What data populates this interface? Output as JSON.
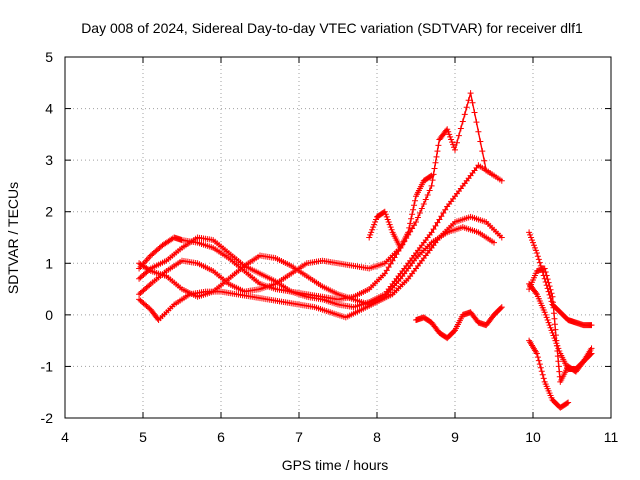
{
  "chart_data": {
    "type": "scatter",
    "title": "Day 008 of 2024, Sidereal Day-to-day VTEC variation (SDTVAR) for receiver dlf1",
    "xlabel": "GPS time / hours",
    "ylabel": "SDTVAR / TECUs",
    "xlim": [
      4,
      11
    ],
    "ylim": [
      -2,
      5
    ],
    "xticks": [
      "4",
      "5",
      "6",
      "7",
      "8",
      "9",
      "10",
      "11"
    ],
    "yticks": [
      "-2",
      "-1",
      "0",
      "1",
      "2",
      "3",
      "4",
      "5"
    ],
    "grid": true,
    "marker": "+",
    "color": "#ff0000",
    "series": [
      {
        "name": "track-1",
        "x": [
          4.95,
          5.1,
          5.25,
          5.4,
          5.5,
          5.7,
          5.9,
          6.1,
          6.3,
          6.5,
          6.7,
          6.9,
          7.1,
          7.3,
          7.5,
          7.7,
          7.9,
          8.1,
          8.3,
          8.4,
          8.5,
          8.6,
          8.7
        ],
        "y": [
          0.9,
          1.15,
          1.35,
          1.5,
          1.45,
          1.4,
          1.3,
          1.1,
          0.85,
          0.6,
          0.5,
          0.45,
          0.4,
          0.35,
          0.3,
          0.35,
          0.5,
          0.8,
          1.3,
          1.6,
          2.3,
          2.6,
          2.7
        ]
      },
      {
        "name": "track-2",
        "x": [
          4.95,
          5.1,
          5.3,
          5.5,
          5.7,
          5.9,
          6.1,
          6.3,
          6.5,
          6.7,
          6.9,
          7.1,
          7.3,
          7.5,
          7.7,
          7.9,
          8.1,
          8.3,
          8.5,
          8.7,
          8.9,
          9.1,
          9.3,
          9.5
        ],
        "y": [
          0.7,
          0.9,
          1.05,
          1.3,
          1.5,
          1.45,
          1.2,
          0.95,
          0.8,
          0.65,
          0.45,
          0.35,
          0.3,
          0.2,
          0.15,
          0.25,
          0.4,
          0.8,
          1.2,
          1.6,
          2.1,
          2.5,
          2.9,
          2.7
        ]
      },
      {
        "name": "track-3",
        "x": [
          4.95,
          5.1,
          5.3,
          5.5,
          5.7,
          5.9,
          6.1,
          6.3,
          6.5,
          6.7,
          6.9,
          7.1,
          7.3,
          7.5,
          7.7,
          7.9,
          8.1,
          8.3,
          8.5,
          8.7,
          8.8,
          8.9,
          9.0,
          9.2,
          9.4,
          9.6
        ],
        "y": [
          0.4,
          0.6,
          0.85,
          1.05,
          1.0,
          0.85,
          0.6,
          0.45,
          0.5,
          0.6,
          0.8,
          1.0,
          1.05,
          1.0,
          0.95,
          0.9,
          1.0,
          1.3,
          1.8,
          2.5,
          3.4,
          3.6,
          3.2,
          4.3,
          2.8,
          2.6
        ]
      },
      {
        "name": "track-4",
        "x": [
          4.95,
          5.1,
          5.2,
          5.4,
          5.6,
          5.8,
          6.0,
          6.2,
          6.4,
          6.6,
          6.8,
          7.0,
          7.2,
          7.4,
          7.6,
          7.8,
          8.0,
          8.2,
          8.4,
          8.6,
          8.8,
          9.0,
          9.2,
          9.4,
          9.6
        ],
        "y": [
          0.3,
          0.1,
          -0.1,
          0.2,
          0.4,
          0.45,
          0.45,
          0.4,
          0.35,
          0.3,
          0.25,
          0.2,
          0.15,
          0.05,
          -0.05,
          0.1,
          0.25,
          0.4,
          0.7,
          1.1,
          1.5,
          1.8,
          1.9,
          1.8,
          1.5
        ]
      },
      {
        "name": "track-5",
        "x": [
          4.95,
          5.1,
          5.3,
          5.5,
          5.7,
          5.9,
          6.1,
          6.3,
          6.5,
          6.7,
          6.9,
          7.1,
          7.3,
          7.5,
          7.7,
          7.9,
          8.1,
          8.3,
          8.5,
          8.7,
          8.9,
          9.1,
          9.3,
          9.5
        ],
        "y": [
          1.0,
          0.85,
          0.75,
          0.5,
          0.35,
          0.45,
          0.7,
          0.95,
          1.15,
          1.1,
          0.95,
          0.75,
          0.55,
          0.4,
          0.3,
          0.2,
          0.35,
          0.7,
          1.1,
          1.4,
          1.6,
          1.7,
          1.6,
          1.4
        ]
      },
      {
        "name": "track-6",
        "x": [
          7.9,
          8.0,
          8.1,
          8.2,
          8.3
        ],
        "y": [
          1.5,
          1.9,
          2.0,
          1.6,
          1.3
        ]
      },
      {
        "name": "track-7",
        "x": [
          8.5,
          8.6,
          8.7,
          8.8,
          8.9,
          9.0,
          9.1,
          9.2,
          9.3,
          9.4,
          9.5,
          9.6
        ],
        "y": [
          -0.1,
          -0.05,
          -0.15,
          -0.35,
          -0.45,
          -0.3,
          0.0,
          0.05,
          -0.15,
          -0.2,
          0.0,
          0.15
        ]
      },
      {
        "name": "track-8",
        "x": [
          9.95,
          10.05,
          10.15,
          10.25,
          10.35,
          10.45,
          10.55,
          10.65,
          10.75
        ],
        "y": [
          1.6,
          1.2,
          0.7,
          0.2,
          0.05,
          -0.1,
          -0.15,
          -0.2,
          -0.2
        ]
      },
      {
        "name": "track-9",
        "x": [
          9.95,
          10.05,
          10.15,
          10.25,
          10.3,
          10.35,
          10.45,
          10.55,
          10.65,
          10.75
        ],
        "y": [
          0.5,
          0.85,
          0.9,
          0.35,
          -0.5,
          -1.3,
          -1.0,
          -1.1,
          -0.9,
          -0.65
        ]
      },
      {
        "name": "track-10",
        "x": [
          9.95,
          10.05,
          10.15,
          10.25,
          10.35,
          10.45
        ],
        "y": [
          -0.5,
          -0.75,
          -1.3,
          -1.65,
          -1.8,
          -1.7
        ]
      },
      {
        "name": "track-11",
        "x": [
          9.95,
          10.05,
          10.15,
          10.25,
          10.35,
          10.45,
          10.55,
          10.65,
          10.75
        ],
        "y": [
          0.6,
          0.4,
          0.05,
          -0.35,
          -0.75,
          -1.05,
          -1.05,
          -0.9,
          -0.75
        ]
      }
    ]
  }
}
